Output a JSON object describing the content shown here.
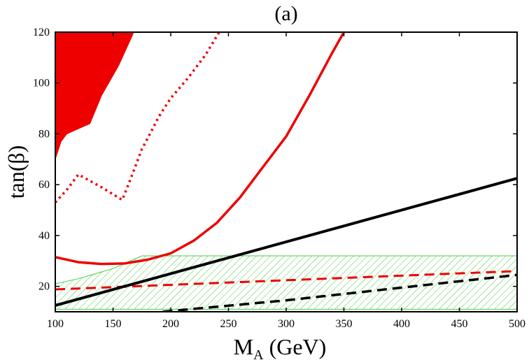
{
  "chart_data": {
    "type": "line",
    "title": "(a)",
    "xlabel": "M",
    "xlabel_sub": "A",
    "xlabel_unit": " (GeV)",
    "ylabel": "tan(β)",
    "xlim": [
      100,
      500
    ],
    "ylim": [
      10,
      120
    ],
    "xticks": [
      100,
      150,
      200,
      250,
      300,
      350,
      400,
      450,
      500
    ],
    "yticks": [
      20,
      40,
      60,
      80,
      100,
      120
    ],
    "grid": false,
    "legend": "none",
    "colors": {
      "red": "#ee0000",
      "black": "#000000",
      "green": "#44cc44"
    },
    "regions": [
      {
        "kind": "filled",
        "color": "#ee0000",
        "points": [
          [
            100,
            120
          ],
          [
            100,
            70
          ],
          [
            105,
            77
          ],
          [
            110,
            80
          ],
          [
            120,
            82
          ],
          [
            130,
            84
          ],
          [
            140,
            95
          ],
          [
            155,
            107
          ],
          [
            165,
            117
          ],
          [
            168,
            120
          ]
        ]
      },
      {
        "kind": "hatched",
        "color": "#44cc44",
        "points": [
          [
            100,
            21
          ],
          [
            120,
            23
          ],
          [
            150,
            27
          ],
          [
            175,
            32
          ],
          [
            500,
            32
          ],
          [
            500,
            11
          ],
          [
            100,
            11
          ]
        ]
      }
    ],
    "series": [
      {
        "color": "#ee0000",
        "style": "solid",
        "width": 3.5,
        "points": [
          [
            100,
            31.5
          ],
          [
            120,
            29.5
          ],
          [
            140,
            28.8
          ],
          [
            160,
            29
          ],
          [
            180,
            30.5
          ],
          [
            200,
            33
          ],
          [
            220,
            38
          ],
          [
            240,
            45
          ],
          [
            260,
            55
          ],
          [
            280,
            67
          ],
          [
            300,
            79
          ],
          [
            320,
            95
          ],
          [
            340,
            112
          ],
          [
            350,
            120
          ]
        ]
      },
      {
        "color": "#ee0000",
        "style": "dotted",
        "width": 3.5,
        "points": [
          [
            100,
            53
          ],
          [
            110,
            58
          ],
          [
            120,
            64
          ],
          [
            140,
            59
          ],
          [
            158,
            54
          ],
          [
            165,
            62
          ],
          [
            175,
            74
          ],
          [
            182,
            80
          ],
          [
            190,
            87
          ],
          [
            200,
            94
          ],
          [
            215,
            102
          ],
          [
            230,
            111
          ],
          [
            242,
            120
          ]
        ]
      },
      {
        "color": "#ee0000",
        "style": "dashed",
        "width": 3,
        "points": [
          [
            100,
            18.8
          ],
          [
            500,
            26
          ]
        ]
      },
      {
        "color": "#000000",
        "style": "solid",
        "width": 4,
        "points": [
          [
            100,
            12.5
          ],
          [
            500,
            62.5
          ]
        ]
      },
      {
        "color": "#000000",
        "style": "dashed",
        "width": 3.5,
        "points": [
          [
            193,
            10
          ],
          [
            300,
            14.5
          ],
          [
            500,
            24.5
          ]
        ]
      }
    ]
  }
}
